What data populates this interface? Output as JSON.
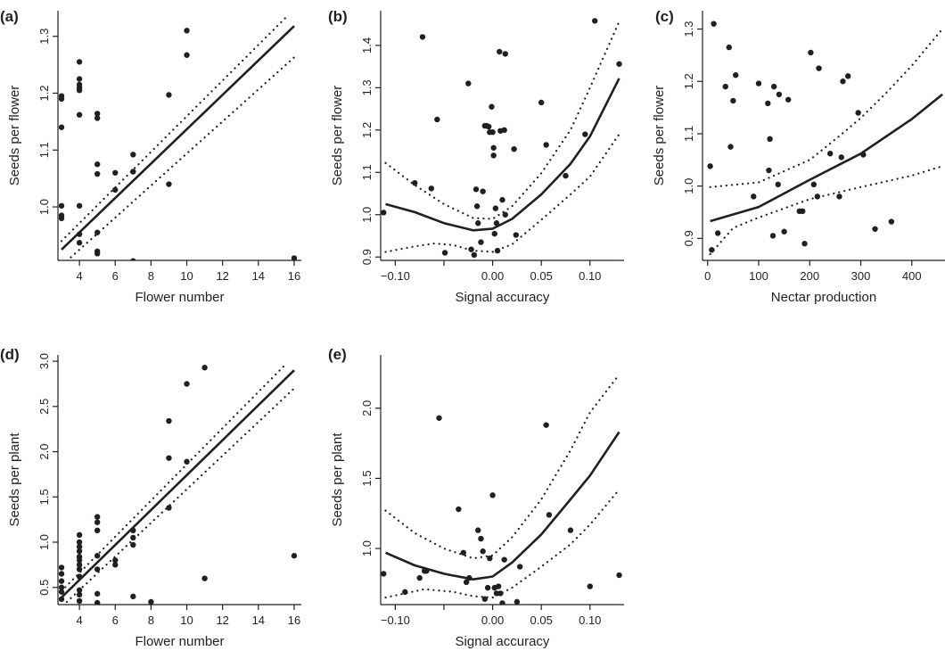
{
  "chart_data": [
    {
      "panel": "(a)",
      "type": "scatter",
      "xlabel": "Flower number",
      "ylabel": "Seeds per flower",
      "xlim": [
        2.8,
        16.4
      ],
      "ylim": [
        0.906,
        1.345
      ],
      "xticks": [
        4,
        6,
        8,
        10,
        12,
        14,
        16
      ],
      "yticks": [
        1.0,
        1.1,
        1.2,
        1.3
      ],
      "points": [
        [
          3,
          1.195
        ],
        [
          3,
          1.19
        ],
        [
          3,
          1.14
        ],
        [
          3,
          1.002
        ],
        [
          3,
          0.985
        ],
        [
          3,
          0.98
        ],
        [
          4,
          1.255
        ],
        [
          4,
          1.225
        ],
        [
          4,
          1.215
        ],
        [
          4,
          1.21
        ],
        [
          4,
          1.205
        ],
        [
          4,
          1.162
        ],
        [
          4,
          1.002
        ],
        [
          4,
          0.952
        ],
        [
          4,
          0.937
        ],
        [
          5,
          1.164
        ],
        [
          5,
          1.156
        ],
        [
          5,
          1.075
        ],
        [
          5,
          1.058
        ],
        [
          5,
          0.955
        ],
        [
          5,
          0.922
        ],
        [
          5,
          0.918
        ],
        [
          6,
          1.06
        ],
        [
          6,
          1.03
        ],
        [
          7,
          1.092
        ],
        [
          7,
          1.062
        ],
        [
          7,
          0.905
        ],
        [
          9,
          1.197
        ],
        [
          9,
          1.04
        ],
        [
          10,
          1.31
        ],
        [
          10,
          1.267
        ],
        [
          16,
          0.91
        ]
      ],
      "fit": [
        [
          3,
          0.925
        ],
        [
          16,
          1.318
        ]
      ],
      "ci_upper": [
        [
          3,
          0.94
        ],
        [
          15.6,
          1.335
        ]
      ],
      "ci_lower": [
        [
          3.3,
          0.905
        ],
        [
          16,
          1.263
        ]
      ]
    },
    {
      "panel": "(b)",
      "type": "scatter",
      "xlabel": "Signal accuracy",
      "ylabel": "Seeds per flower",
      "xlim": [
        -0.115,
        0.135
      ],
      "ylim": [
        0.892,
        1.482
      ],
      "xticks": [
        -0.1,
        -0.05,
        0.0,
        0.05,
        0.1
      ],
      "xtick_labels": [
        "−0.10",
        "",
        "0.00",
        "0.05",
        "0.10"
      ],
      "yticks": [
        0.9,
        1.0,
        1.1,
        1.2,
        1.3,
        1.4
      ],
      "points": [
        [
          -0.112,
          1.005
        ],
        [
          -0.08,
          1.075
        ],
        [
          -0.072,
          1.42
        ],
        [
          -0.063,
          1.062
        ],
        [
          -0.057,
          1.225
        ],
        [
          -0.049,
          0.91
        ],
        [
          -0.025,
          1.31
        ],
        [
          -0.022,
          0.918
        ],
        [
          -0.019,
          0.905
        ],
        [
          -0.017,
          1.06
        ],
        [
          -0.016,
          1.02
        ],
        [
          -0.015,
          0.98
        ],
        [
          -0.012,
          0.935
        ],
        [
          -0.01,
          1.055
        ],
        [
          -0.008,
          1.21
        ],
        [
          -0.006,
          1.21
        ],
        [
          -0.004,
          1.208
        ],
        [
          -0.003,
          1.195
        ],
        [
          -0.001,
          1.255
        ],
        [
          0.0,
          1.195
        ],
        [
          0.001,
          1.158
        ],
        [
          0.001,
          1.14
        ],
        [
          0.002,
          0.955
        ],
        [
          0.003,
          1.015
        ],
        [
          0.004,
          0.98
        ],
        [
          0.005,
          0.915
        ],
        [
          0.007,
          1.385
        ],
        [
          0.008,
          1.198
        ],
        [
          0.01,
          1.035
        ],
        [
          0.012,
          1.2
        ],
        [
          0.013,
          1.0
        ],
        [
          0.013,
          1.38
        ],
        [
          0.022,
          1.155
        ],
        [
          0.024,
          0.952
        ],
        [
          0.05,
          1.265
        ],
        [
          0.055,
          1.165
        ],
        [
          0.075,
          1.092
        ],
        [
          0.095,
          1.19
        ],
        [
          0.105,
          1.458
        ],
        [
          0.13,
          1.356
        ]
      ],
      "fit": [
        [
          -0.11,
          1.025
        ],
        [
          -0.08,
          1.006
        ],
        [
          -0.05,
          0.98
        ],
        [
          -0.02,
          0.963
        ],
        [
          0.0,
          0.967
        ],
        [
          0.02,
          0.99
        ],
        [
          0.05,
          1.048
        ],
        [
          0.08,
          1.12
        ],
        [
          0.1,
          1.185
        ],
        [
          0.13,
          1.322
        ]
      ],
      "ci_upper": [
        [
          -0.11,
          1.122
        ],
        [
          -0.08,
          1.07
        ],
        [
          -0.05,
          1.025
        ],
        [
          -0.02,
          0.992
        ],
        [
          0.0,
          0.99
        ],
        [
          0.02,
          1.02
        ],
        [
          0.05,
          1.098
        ],
        [
          0.08,
          1.2
        ],
        [
          0.1,
          1.3
        ],
        [
          0.13,
          1.456
        ]
      ],
      "ci_lower": [
        [
          -0.11,
          0.912
        ],
        [
          -0.08,
          0.925
        ],
        [
          -0.06,
          0.932
        ],
        [
          -0.04,
          0.928
        ],
        [
          -0.02,
          0.915
        ],
        [
          0.0,
          0.912
        ],
        [
          0.02,
          0.93
        ],
        [
          0.05,
          0.988
        ],
        [
          0.08,
          1.048
        ],
        [
          0.1,
          1.09
        ],
        [
          0.13,
          1.19
        ]
      ]
    },
    {
      "panel": "(c)",
      "type": "scatter",
      "xlabel": "Nectar production",
      "ylabel": "Seeds per flower",
      "xlim": [
        -10,
        465
      ],
      "ylim": [
        0.858,
        1.335
      ],
      "xticks": [
        0,
        100,
        200,
        300,
        400
      ],
      "yticks": [
        0.9,
        1.0,
        1.1,
        1.2,
        1.3
      ],
      "points": [
        [
          5,
          1.038
        ],
        [
          8,
          0.878
        ],
        [
          12,
          1.31
        ],
        [
          20,
          0.91
        ],
        [
          35,
          1.19
        ],
        [
          42,
          1.265
        ],
        [
          45,
          1.075
        ],
        [
          50,
          1.163
        ],
        [
          55,
          1.212
        ],
        [
          90,
          0.98
        ],
        [
          100,
          1.196
        ],
        [
          118,
          1.158
        ],
        [
          120,
          1.03
        ],
        [
          122,
          1.09
        ],
        [
          128,
          0.905
        ],
        [
          130,
          1.19
        ],
        [
          138,
          1.003
        ],
        [
          140,
          1.175
        ],
        [
          150,
          0.913
        ],
        [
          158,
          1.165
        ],
        [
          180,
          0.952
        ],
        [
          186,
          0.952
        ],
        [
          190,
          0.89
        ],
        [
          202,
          1.255
        ],
        [
          208,
          1.003
        ],
        [
          215,
          0.98
        ],
        [
          218,
          1.225
        ],
        [
          240,
          1.062
        ],
        [
          258,
          0.98
        ],
        [
          262,
          1.055
        ],
        [
          265,
          1.2
        ],
        [
          275,
          1.21
        ],
        [
          295,
          1.14
        ],
        [
          305,
          1.06
        ],
        [
          328,
          0.918
        ],
        [
          360,
          0.932
        ]
      ],
      "fit": [
        [
          5,
          0.933
        ],
        [
          100,
          0.96
        ],
        [
          200,
          1.012
        ],
        [
          300,
          1.062
        ],
        [
          350,
          1.095
        ],
        [
          400,
          1.128
        ],
        [
          460,
          1.175
        ]
      ],
      "ci_upper": [
        [
          5,
          0.998
        ],
        [
          100,
          1.007
        ],
        [
          200,
          1.05
        ],
        [
          260,
          1.097
        ],
        [
          300,
          1.13
        ],
        [
          350,
          1.178
        ],
        [
          400,
          1.23
        ],
        [
          460,
          1.3
        ]
      ],
      "ci_lower": [
        [
          5,
          0.87
        ],
        [
          50,
          0.92
        ],
        [
          100,
          0.94
        ],
        [
          200,
          0.975
        ],
        [
          300,
          0.998
        ],
        [
          400,
          1.02
        ],
        [
          460,
          1.038
        ]
      ]
    },
    {
      "panel": "(d)",
      "type": "scatter",
      "xlabel": "Flower number",
      "ylabel": "Seeds per plant",
      "xlim": [
        2.8,
        16.4
      ],
      "ylim": [
        0.31,
        3.07
      ],
      "xticks": [
        4,
        6,
        8,
        10,
        12,
        14,
        16
      ],
      "yticks": [
        0.5,
        1.0,
        1.5,
        2.0,
        2.5,
        3.0
      ],
      "points": [
        [
          3,
          0.72
        ],
        [
          3,
          0.65
        ],
        [
          3,
          0.57
        ],
        [
          3,
          0.5
        ],
        [
          3,
          0.45
        ],
        [
          3,
          0.37
        ],
        [
          4,
          1.08
        ],
        [
          4,
          1.0
        ],
        [
          4,
          0.95
        ],
        [
          4,
          0.9
        ],
        [
          4,
          0.84
        ],
        [
          4,
          0.8
        ],
        [
          4,
          0.75
        ],
        [
          4,
          0.7
        ],
        [
          4,
          0.62
        ],
        [
          4,
          0.47
        ],
        [
          4,
          0.42
        ],
        [
          4,
          0.35
        ],
        [
          5,
          1.28
        ],
        [
          5,
          1.22
        ],
        [
          5,
          1.13
        ],
        [
          5,
          0.85
        ],
        [
          5,
          0.7
        ],
        [
          5,
          0.43
        ],
        [
          5,
          0.33
        ],
        [
          6,
          0.8
        ],
        [
          6,
          0.75
        ],
        [
          7,
          1.13
        ],
        [
          7,
          1.05
        ],
        [
          7,
          0.97
        ],
        [
          7,
          0.4
        ],
        [
          8,
          0.34
        ],
        [
          9,
          2.34
        ],
        [
          9,
          1.93
        ],
        [
          9,
          1.38
        ],
        [
          10,
          2.75
        ],
        [
          10,
          1.89
        ],
        [
          11,
          2.93
        ],
        [
          11,
          0.6
        ],
        [
          16,
          0.85
        ]
      ],
      "fit": [
        [
          3,
          0.39
        ],
        [
          16,
          2.9
        ]
      ],
      "ci_upper": [
        [
          3,
          0.46
        ],
        [
          15.6,
          2.98
        ]
      ],
      "ci_lower": [
        [
          3.3,
          0.34
        ],
        [
          16,
          2.7
        ]
      ]
    },
    {
      "panel": "(e)",
      "type": "scatter",
      "xlabel": "Signal accuracy",
      "ylabel": "Seeds per plant",
      "xlim": [
        -0.115,
        0.135
      ],
      "ylim": [
        0.6,
        2.38
      ],
      "xticks": [
        -0.1,
        -0.05,
        0.0,
        0.05,
        0.1
      ],
      "xtick_labels": [
        "−0.10",
        "",
        "0.00",
        "0.05",
        "0.10"
      ],
      "yticks": [
        1.0,
        1.5,
        2.0
      ],
      "points": [
        [
          -0.112,
          0.82
        ],
        [
          -0.09,
          0.69
        ],
        [
          -0.075,
          0.79
        ],
        [
          -0.07,
          0.84
        ],
        [
          -0.068,
          0.84
        ],
        [
          -0.055,
          1.93
        ],
        [
          -0.035,
          1.28
        ],
        [
          -0.03,
          0.97
        ],
        [
          -0.027,
          0.76
        ],
        [
          -0.024,
          0.79
        ],
        [
          -0.015,
          1.13
        ],
        [
          -0.012,
          1.07
        ],
        [
          -0.01,
          0.98
        ],
        [
          -0.008,
          0.64
        ],
        [
          -0.005,
          0.72
        ],
        [
          -0.003,
          0.93
        ],
        [
          0.0,
          1.38
        ],
        [
          0.002,
          0.72
        ],
        [
          0.004,
          0.68
        ],
        [
          0.006,
          0.73
        ],
        [
          0.008,
          0.68
        ],
        [
          0.01,
          0.61
        ],
        [
          0.012,
          0.92
        ],
        [
          0.025,
          0.62
        ],
        [
          0.028,
          0.87
        ],
        [
          0.055,
          1.88
        ],
        [
          0.058,
          1.24
        ],
        [
          0.08,
          1.13
        ],
        [
          0.1,
          0.73
        ],
        [
          0.13,
          0.81
        ]
      ],
      "fit": [
        [
          -0.11,
          0.97
        ],
        [
          -0.08,
          0.88
        ],
        [
          -0.05,
          0.82
        ],
        [
          -0.02,
          0.78
        ],
        [
          0.0,
          0.8
        ],
        [
          0.02,
          0.9
        ],
        [
          0.05,
          1.1
        ],
        [
          0.08,
          1.35
        ],
        [
          0.1,
          1.52
        ],
        [
          0.13,
          1.83
        ]
      ],
      "ci_upper": [
        [
          -0.11,
          1.27
        ],
        [
          -0.08,
          1.11
        ],
        [
          -0.05,
          1.0
        ],
        [
          -0.02,
          0.93
        ],
        [
          0.0,
          0.95
        ],
        [
          0.02,
          1.08
        ],
        [
          0.05,
          1.35
        ],
        [
          0.08,
          1.7
        ],
        [
          0.1,
          1.97
        ],
        [
          0.13,
          2.24
        ]
      ],
      "ci_lower": [
        [
          -0.11,
          0.65
        ],
        [
          -0.07,
          0.71
        ],
        [
          -0.04,
          0.69
        ],
        [
          -0.02,
          0.66
        ],
        [
          0.0,
          0.65
        ],
        [
          0.02,
          0.72
        ],
        [
          0.05,
          0.87
        ],
        [
          0.08,
          1.03
        ],
        [
          0.1,
          1.17
        ],
        [
          0.13,
          1.42
        ]
      ]
    }
  ]
}
